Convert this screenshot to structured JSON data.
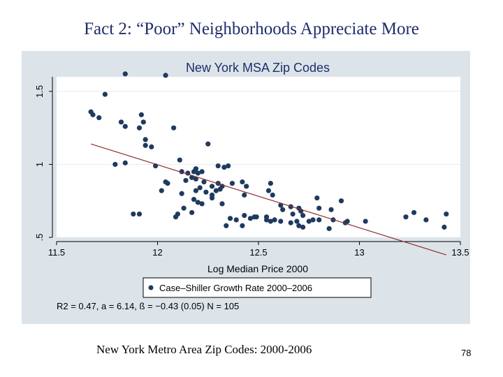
{
  "slide": {
    "title": "Fact 2:   “Poor” Neighborhoods Appreciate More",
    "caption": "New York Metro Area Zip Codes:  2000-2006",
    "page_number": "78"
  },
  "colors": {
    "panel_background": "#dce4ea",
    "plot_background": "#ffffff",
    "marker": "#1f3a5f",
    "fit_line": "#8b2e2e",
    "title_text": "#1f2d6b"
  },
  "chart_data": {
    "type": "scatter",
    "title": "New York MSA Zip Codes",
    "xlabel": "Log Median Price 2000",
    "ylabel": "",
    "xlim": [
      11.5,
      13.5
    ],
    "ylim": [
      0.5,
      1.6
    ],
    "x_ticks": [
      "11.5",
      "12",
      "12.5",
      "13",
      "13.5"
    ],
    "y_ticks": [
      ".5",
      "1",
      "1.5"
    ],
    "grid": true,
    "legend_position": "bottom",
    "legend": [
      "Case–Shiller Growth Rate 2000–2006"
    ],
    "stats_note": "R2 = 0.47, a = 6.14, ß = −0.43 (0.05) N = 105",
    "fit_line": {
      "x": [
        11.67,
        13.43
      ],
      "y": [
        1.14,
        0.38
      ]
    },
    "series": [
      {
        "name": "Case–Shiller Growth Rate 2000–2006",
        "points": [
          [
            11.84,
            1.62
          ],
          [
            12.04,
            1.61
          ],
          [
            11.74,
            1.48
          ],
          [
            11.67,
            1.36
          ],
          [
            11.68,
            1.34
          ],
          [
            11.71,
            1.32
          ],
          [
            11.82,
            1.29
          ],
          [
            11.84,
            1.26
          ],
          [
            11.92,
            1.34
          ],
          [
            11.93,
            1.29
          ],
          [
            11.91,
            1.25
          ],
          [
            12.08,
            1.25
          ],
          [
            11.94,
            1.17
          ],
          [
            11.94,
            1.13
          ],
          [
            11.97,
            1.12
          ],
          [
            12.25,
            1.14
          ],
          [
            11.79,
            1.0
          ],
          [
            11.84,
            1.01
          ],
          [
            11.99,
            0.99
          ],
          [
            12.11,
            1.03
          ],
          [
            12.3,
            0.99
          ],
          [
            12.33,
            0.98
          ],
          [
            12.35,
            0.99
          ],
          [
            12.12,
            0.95
          ],
          [
            12.15,
            0.94
          ],
          [
            12.18,
            0.95
          ],
          [
            12.19,
            0.97
          ],
          [
            12.2,
            0.94
          ],
          [
            12.17,
            0.91
          ],
          [
            12.14,
            0.89
          ],
          [
            12.04,
            0.88
          ],
          [
            12.05,
            0.87
          ],
          [
            12.19,
            0.9
          ],
          [
            12.23,
            0.88
          ],
          [
            12.27,
            0.85
          ],
          [
            12.3,
            0.87
          ],
          [
            12.32,
            0.85
          ],
          [
            12.37,
            0.87
          ],
          [
            12.19,
            0.82
          ],
          [
            12.21,
            0.84
          ],
          [
            12.24,
            0.81
          ],
          [
            12.27,
            0.79
          ],
          [
            12.29,
            0.82
          ],
          [
            12.31,
            0.83
          ],
          [
            12.02,
            0.82
          ],
          [
            12.12,
            0.8
          ],
          [
            12.18,
            0.76
          ],
          [
            12.2,
            0.74
          ],
          [
            12.22,
            0.73
          ],
          [
            12.32,
            0.73
          ],
          [
            12.13,
            0.7
          ],
          [
            12.1,
            0.66
          ],
          [
            12.09,
            0.64
          ],
          [
            12.17,
            0.67
          ],
          [
            12.27,
            0.77
          ],
          [
            11.88,
            0.66
          ],
          [
            11.91,
            0.66
          ],
          [
            12.34,
            0.58
          ],
          [
            12.39,
            0.62
          ],
          [
            12.42,
            0.58
          ],
          [
            12.43,
            0.65
          ],
          [
            12.46,
            0.63
          ],
          [
            12.49,
            0.64
          ],
          [
            12.43,
            0.79
          ],
          [
            12.44,
            0.85
          ],
          [
            12.42,
            0.88
          ],
          [
            12.55,
            0.82
          ],
          [
            12.56,
            0.87
          ],
          [
            12.57,
            0.79
          ],
          [
            12.61,
            0.72
          ],
          [
            12.62,
            0.69
          ],
          [
            12.67,
            0.66
          ],
          [
            12.7,
            0.7
          ],
          [
            12.54,
            0.62
          ],
          [
            12.56,
            0.61
          ],
          [
            12.58,
            0.62
          ],
          [
            12.61,
            0.61
          ],
          [
            12.66,
            0.6
          ],
          [
            12.69,
            0.61
          ],
          [
            12.7,
            0.58
          ],
          [
            12.72,
            0.57
          ],
          [
            12.72,
            0.65
          ],
          [
            12.75,
            0.61
          ],
          [
            12.77,
            0.62
          ],
          [
            12.79,
            0.77
          ],
          [
            12.8,
            0.7
          ],
          [
            12.85,
            0.56
          ],
          [
            12.87,
            0.62
          ],
          [
            12.86,
            0.69
          ],
          [
            12.91,
            0.75
          ],
          [
            12.93,
            0.6
          ],
          [
            12.94,
            0.61
          ],
          [
            13.03,
            0.61
          ],
          [
            12.71,
            0.68
          ],
          [
            13.23,
            0.64
          ],
          [
            13.27,
            0.67
          ],
          [
            13.33,
            0.62
          ],
          [
            13.43,
            0.66
          ],
          [
            13.42,
            0.57
          ],
          [
            12.54,
            0.64
          ],
          [
            12.22,
            0.95
          ],
          [
            12.36,
            0.63
          ],
          [
            12.66,
            0.71
          ],
          [
            12.8,
            0.62
          ],
          [
            12.48,
            0.64
          ]
        ]
      }
    ]
  }
}
